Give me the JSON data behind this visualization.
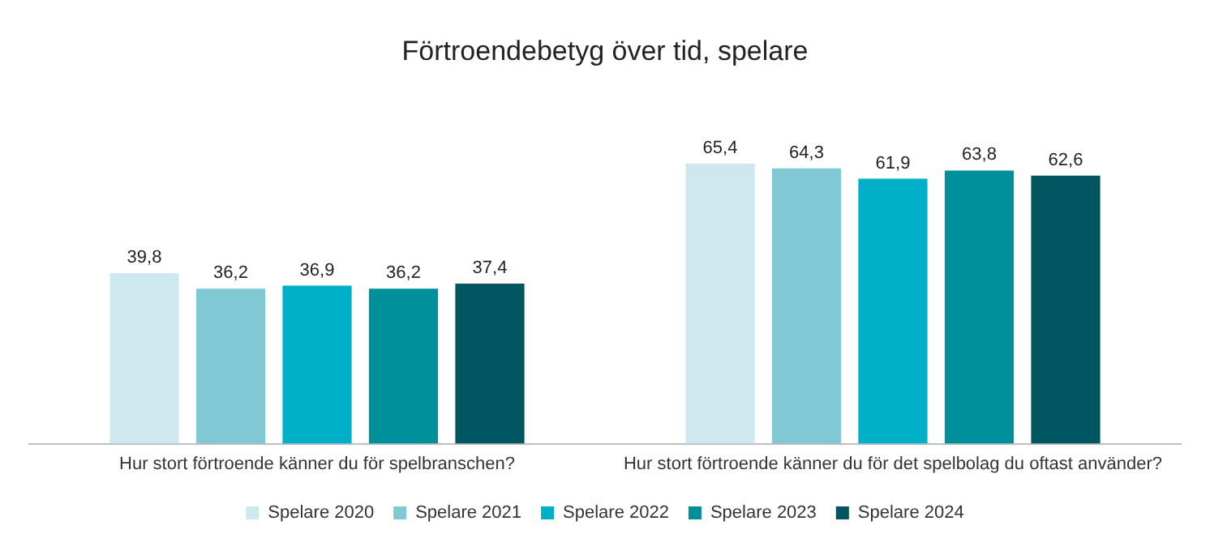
{
  "chart_data": {
    "type": "bar",
    "title": "Förtroendebetyg över tid, spelare",
    "categories": [
      "Hur stort förtroende känner du för spelbranschen?",
      "Hur stort förtroende känner du för det spelbolag du oftast använder?"
    ],
    "series": [
      {
        "name": "Spelare 2020",
        "color": "#cde9ee",
        "values": [
          39.8,
          65.4
        ],
        "value_labels": [
          "39,8",
          "65,4"
        ]
      },
      {
        "name": "Spelare 2021",
        "color": "#7fc8d4",
        "values": [
          36.2,
          64.3
        ],
        "value_labels": [
          "36,2",
          "64,3"
        ]
      },
      {
        "name": "Spelare 2022",
        "color": "#00b0c8",
        "values": [
          36.9,
          61.9
        ],
        "value_labels": [
          "36,9",
          "61,9"
        ]
      },
      {
        "name": "Spelare 2023",
        "color": "#00909c",
        "values": [
          36.2,
          63.8
        ],
        "value_labels": [
          "36,2",
          "63,8"
        ]
      },
      {
        "name": "Spelare 2024",
        "color": "#005660",
        "values": [
          37.4,
          62.6
        ],
        "value_labels": [
          "37,4",
          "62,6"
        ]
      }
    ],
    "legend": "bottom",
    "grid": false
  }
}
